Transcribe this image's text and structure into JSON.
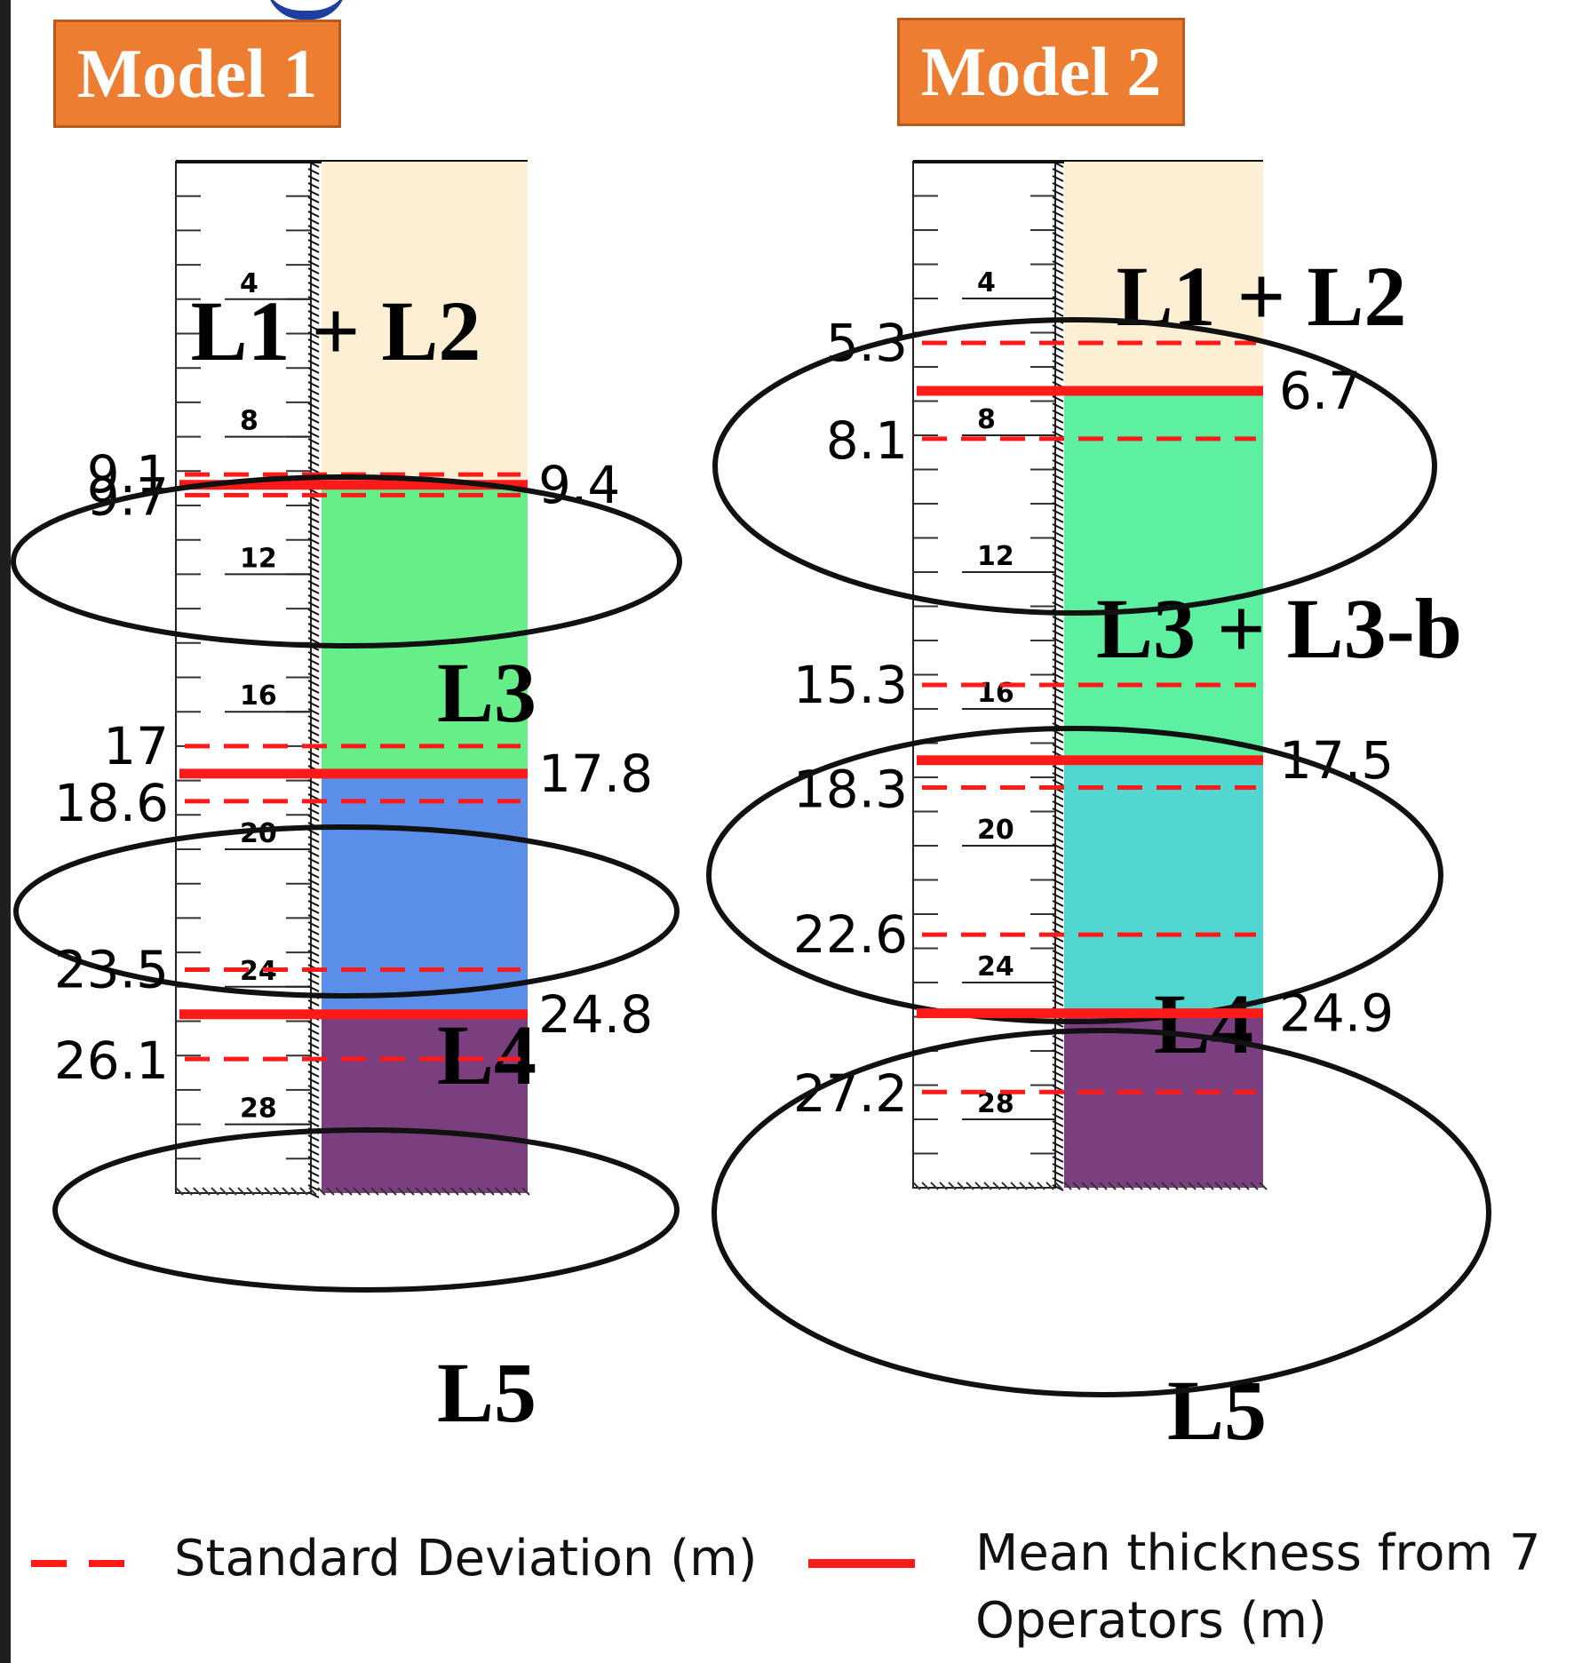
{
  "models": [
    {
      "label": "Model 1",
      "layers": [
        {
          "name": "L1  + L2",
          "from": 0,
          "to": 9.4,
          "color": "#fdefd4"
        },
        {
          "name": "L3",
          "from": 9.4,
          "to": 17.8,
          "color": "#66ee88"
        },
        {
          "name": "L4",
          "from": 17.8,
          "to": 24.8,
          "color": "#5a8ee8"
        },
        {
          "name": "L5",
          "from": 24.8,
          "to": 30,
          "color": "#7b3f80"
        }
      ],
      "boundaries": [
        {
          "mean": 9.4,
          "sd_low": 9.1,
          "sd_high": 9.7
        },
        {
          "mean": 17.8,
          "sd_low": 17,
          "sd_high": 18.6
        },
        {
          "mean": 24.8,
          "sd_low": 23.5,
          "sd_high": 26.1
        }
      ],
      "depth_ticks": [
        4,
        8,
        12,
        16,
        20,
        24,
        28
      ]
    },
    {
      "label": "Model 2",
      "layers": [
        {
          "name": "L1  + L2",
          "from": 0,
          "to": 6.7,
          "color": "#fdefd4"
        },
        {
          "name": "L3  + L3-b",
          "from": 6.7,
          "to": 17.5,
          "color": "#5cf0a0"
        },
        {
          "name": "L4",
          "from": 17.5,
          "to": 24.9,
          "color": "#52d6d2"
        },
        {
          "name": "L5",
          "from": 24.9,
          "to": 30,
          "color": "#7b3f80"
        }
      ],
      "boundaries": [
        {
          "mean": 6.7,
          "sd_low": 5.3,
          "sd_high": 8.1
        },
        {
          "mean": 17.5,
          "sd_low": 15.3,
          "sd_high": 18.3
        },
        {
          "mean": 24.9,
          "sd_low": 22.6,
          "sd_high": 27.2
        }
      ],
      "depth_ticks": [
        4,
        8,
        12,
        16,
        20,
        24,
        28
      ]
    }
  ],
  "legend": {
    "sd_label": "Standard Deviation (m)",
    "mean_label_line1": "Mean thickness from 7",
    "mean_label_line2": "Operators (m)"
  },
  "colors": {
    "mean_line": "#ff1a1a",
    "sd_line": "#ff1a1a",
    "badge": "#ed7d31",
    "ellipse": "#111111"
  }
}
